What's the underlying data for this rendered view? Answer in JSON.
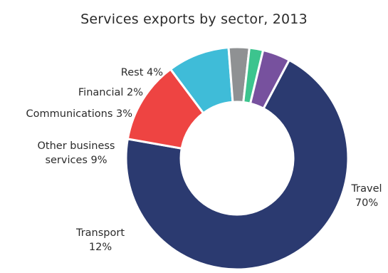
{
  "chart_data": {
    "type": "pie",
    "variant": "donut",
    "title": "Services exports by sector, 2013",
    "slices": [
      {
        "name": "Travel",
        "value": 70,
        "value_label": "70%",
        "color": "#2b3a70"
      },
      {
        "name": "Transport",
        "value": 12,
        "value_label": "12%",
        "color": "#ee4442"
      },
      {
        "name": "Other business services",
        "value": 9,
        "value_label": "9%",
        "color": "#3fbcd8"
      },
      {
        "name": "Communications",
        "value": 3,
        "value_label": "3%",
        "color": "#8f9193"
      },
      {
        "name": "Financial",
        "value": 2,
        "value_label": "2%",
        "color": "#3cc48e"
      },
      {
        "name": "Rest",
        "value": 4,
        "value_label": "4%",
        "color": "#77519e"
      }
    ],
    "labels": [
      {
        "lines": [
          "Travel",
          "70%"
        ]
      },
      {
        "lines": [
          "Transport",
          "12%"
        ]
      },
      {
        "lines": [
          "Other business",
          "services 9%"
        ]
      },
      {
        "lines": [
          "Communications 3%"
        ]
      },
      {
        "lines": [
          "Financial 2%"
        ]
      },
      {
        "lines": [
          "Rest 4%"
        ]
      }
    ],
    "legend": "none"
  }
}
